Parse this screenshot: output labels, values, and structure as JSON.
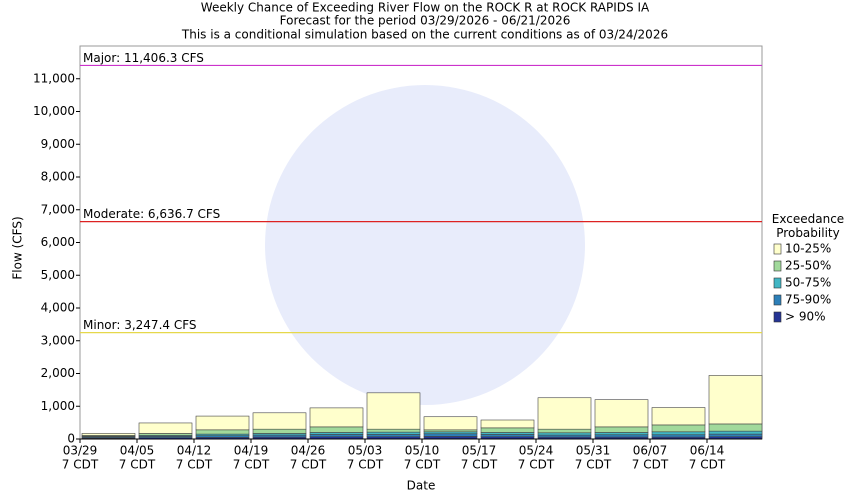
{
  "chart_data": {
    "type": "stacked_bar",
    "title": "Weekly Chance of Exceeding River Flow on the ROCK R at ROCK RAPIDS IA",
    "subtitle": "Forecast for the period 03/29/2026 - 06/21/2026",
    "note": "This is a conditional simulation based on the current conditions as of 03/24/2026",
    "x_label": "Date",
    "y_label": "Flow (CFS)",
    "categories": [
      "03/29",
      "04/05",
      "04/12",
      "04/19",
      "04/26",
      "05/03",
      "05/10",
      "05/17",
      "05/24",
      "05/31",
      "06/07",
      "06/14"
    ],
    "time_label": "7 CDT",
    "ylim": [
      0,
      12000
    ],
    "yticks": [
      0,
      {
        "value": 1000,
        "label": "1,000"
      },
      {
        "value": 2000,
        "label": "2,000"
      },
      {
        "value": 3000,
        "label": "3,000"
      },
      {
        "value": 4000,
        "label": "4,000"
      },
      {
        "value": 5000,
        "label": "5,000"
      },
      {
        "value": 6000,
        "label": "6,000"
      },
      {
        "value": 7000,
        "label": "7,000"
      },
      {
        "value": 8000,
        "label": "8,000"
      },
      {
        "value": 9000,
        "label": "9,000"
      },
      {
        "value": 10000,
        "label": "10,000"
      },
      {
        "value": 11000,
        "label": "11,000"
      }
    ],
    "thresholds": [
      {
        "label": "Major: 11,406.3 CFS",
        "value": 11406.3,
        "color": "#cc33cc"
      },
      {
        "label": "Moderate: 6,636.7 CFS",
        "value": 6636.7,
        "color": "#dd2222"
      },
      {
        "label": "Minor: 3,247.4 CFS",
        "value": 3247.4,
        "color": "#e6d84a"
      }
    ],
    "legend_title": "Exceedance Probability",
    "series": [
      {
        "name": "> 90%",
        "color": "#253494",
        "values": [
          30,
          40,
          50,
          60,
          70,
          70,
          80,
          70,
          60,
          60,
          60,
          70
        ]
      },
      {
        "name": "75-90%",
        "color": "#2c7fb8",
        "values": [
          30,
          40,
          50,
          60,
          70,
          70,
          80,
          70,
          60,
          70,
          70,
          80
        ]
      },
      {
        "name": "50-75%",
        "color": "#41b6c4",
        "values": [
          20,
          30,
          50,
          50,
          60,
          70,
          60,
          60,
          70,
          70,
          90,
          90
        ]
      },
      {
        "name": "25-50%",
        "color": "#a1d99b",
        "values": [
          30,
          60,
          130,
          130,
          170,
          90,
          60,
          140,
          110,
          170,
          210,
          220
        ]
      },
      {
        "name": "10-25%",
        "color": "#ffffcc",
        "values": [
          60,
          320,
          420,
          500,
          580,
          1110,
          400,
          240,
          960,
          830,
          530,
          1480
        ]
      }
    ]
  }
}
